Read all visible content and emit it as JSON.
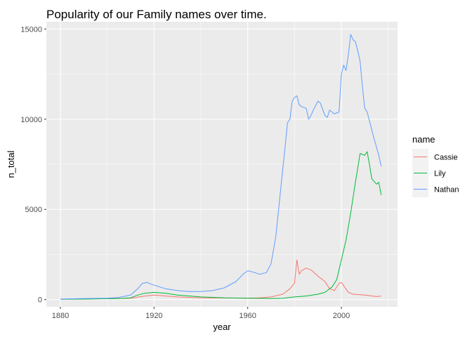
{
  "chart_data": {
    "type": "line",
    "title": "Popularity of our Family names over time.",
    "xlabel": "year",
    "ylabel": "n_total",
    "xlim": [
      1874,
      2024
    ],
    "ylim": [
      -400,
      15400
    ],
    "x_ticks": [
      1880,
      1920,
      1960,
      2000
    ],
    "y_ticks": [
      0,
      5000,
      10000,
      15000
    ],
    "grid": true,
    "legend": {
      "title": "name",
      "position": "right"
    },
    "series": [
      {
        "name": "Cassie",
        "color": "#F8766D",
        "x": [
          1880,
          1890,
          1900,
          1910,
          1915,
          1920,
          1925,
          1930,
          1940,
          1950,
          1960,
          1965,
          1970,
          1975,
          1978,
          1980,
          1981,
          1982,
          1983,
          1985,
          1987,
          1990,
          1993,
          1995,
          1997,
          1999,
          2000,
          2003,
          2005,
          2010,
          2015,
          2017
        ],
        "y": [
          30,
          40,
          50,
          80,
          180,
          250,
          200,
          150,
          100,
          90,
          80,
          100,
          150,
          300,
          600,
          900,
          2200,
          1400,
          1600,
          1750,
          1650,
          1300,
          1000,
          600,
          500,
          900,
          950,
          400,
          300,
          250,
          170,
          200
        ]
      },
      {
        "name": "Lily",
        "color": "#00BA38",
        "x": [
          1880,
          1890,
          1900,
          1905,
          1910,
          1913,
          1916,
          1920,
          1925,
          1930,
          1940,
          1950,
          1960,
          1970,
          1975,
          1980,
          1985,
          1990,
          1993,
          1996,
          1998,
          2000,
          2002,
          2004,
          2006,
          2008,
          2010,
          2011,
          2012,
          2013,
          2015,
          2016,
          2017
        ],
        "y": [
          20,
          30,
          50,
          60,
          100,
          250,
          350,
          400,
          350,
          250,
          150,
          100,
          80,
          60,
          70,
          150,
          200,
          300,
          400,
          700,
          1100,
          2200,
          3300,
          4800,
          6500,
          8100,
          8000,
          8200,
          7500,
          6700,
          6400,
          6500,
          5800
        ]
      },
      {
        "name": "Nathan",
        "color": "#619CFF",
        "x": [
          1880,
          1890,
          1900,
          1905,
          1910,
          1913,
          1915,
          1917,
          1920,
          1925,
          1930,
          1935,
          1940,
          1945,
          1950,
          1955,
          1958,
          1960,
          1963,
          1965,
          1968,
          1970,
          1972,
          1974,
          1976,
          1977,
          1978,
          1979,
          1980,
          1981,
          1982,
          1983,
          1985,
          1986,
          1987,
          1988,
          1990,
          1991,
          1993,
          1994,
          1995,
          1996,
          1997,
          1999,
          2000,
          2001,
          2002,
          2003,
          2004,
          2005,
          2006,
          2007,
          2008,
          2009,
          2010,
          2011,
          2012,
          2014,
          2016,
          2017
        ],
        "y": [
          30,
          60,
          80,
          120,
          250,
          600,
          900,
          950,
          800,
          600,
          500,
          450,
          450,
          500,
          650,
          1000,
          1400,
          1600,
          1500,
          1400,
          1500,
          2000,
          3500,
          6000,
          8500,
          9800,
          10000,
          11000,
          11200,
          11300,
          10800,
          10700,
          10600,
          10000,
          10200,
          10500,
          11000,
          10900,
          10200,
          10100,
          10500,
          10400,
          10300,
          10400,
          12500,
          13000,
          12700,
          13600,
          14700,
          14400,
          14300,
          13800,
          13200,
          11800,
          10600,
          10400,
          9900,
          8900,
          8000,
          7400
        ]
      }
    ]
  }
}
